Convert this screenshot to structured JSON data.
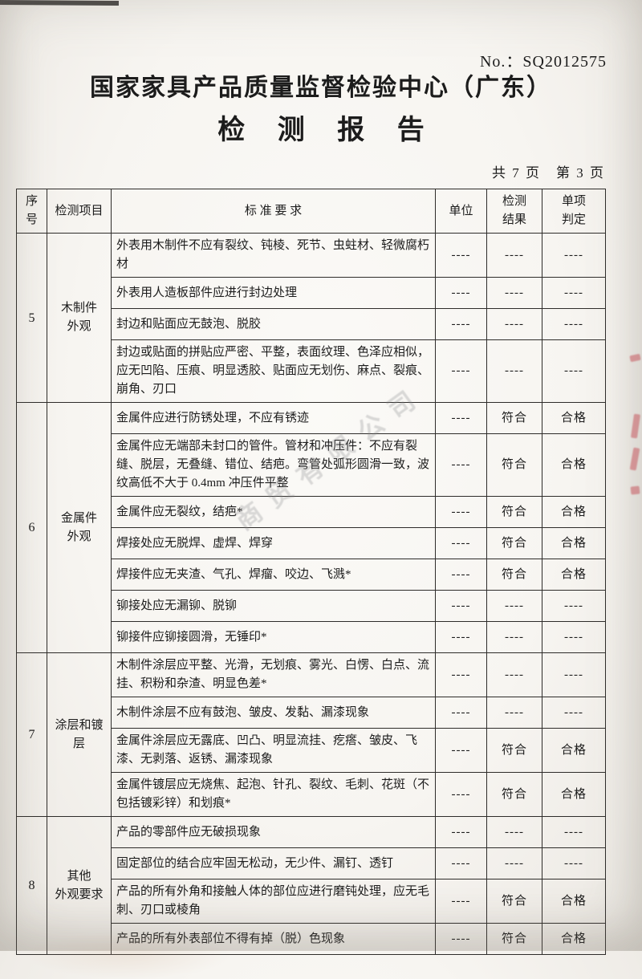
{
  "page": {
    "doc_no": "No.：SQ2012575",
    "org_title": "国家家具产品质量监督检验中心（广东）",
    "report_title": "检 测 报 告",
    "page_info": "共 7 页　第 3 页",
    "watermark": "商贸有限公司",
    "artifact_red": "#d24652",
    "paper_color": "#f7f5f1"
  },
  "table": {
    "headers": {
      "seq": "序\n号",
      "item": "检测项目",
      "requirement": "标 准 要 求",
      "unit": "单位",
      "result": "检测\n结果",
      "verdict": "单项\n判定"
    },
    "sections": [
      {
        "seq": "5",
        "item": "木制件\n外观",
        "rows": [
          {
            "req": "外表用木制件不应有裂纹、钝棱、死节、虫蛀材、轻微腐朽材",
            "unit": "----",
            "result": "----",
            "verdict": "----"
          },
          {
            "req": "外表用人造板部件应进行封边处理",
            "unit": "----",
            "result": "----",
            "verdict": "----"
          },
          {
            "req": "封边和贴面应无鼓泡、脱胶",
            "unit": "----",
            "result": "----",
            "verdict": "----"
          },
          {
            "req": "封边或贴面的拼贴应严密、平整，表面纹理、色泽应相似，应无凹陷、压痕、明显透胶、贴面应无划伤、麻点、裂痕、崩角、刃口",
            "unit": "----",
            "result": "----",
            "verdict": "----"
          }
        ]
      },
      {
        "seq": "6",
        "item": "金属件\n外观",
        "rows": [
          {
            "req": "金属件应进行防锈处理，不应有锈迹",
            "unit": "----",
            "result": "符合",
            "verdict": "合格"
          },
          {
            "req": "金属件应无端部未封口的管件。管材和冲压件：不应有裂缝、脱层，无叠缝、错位、结疤。弯管处弧形圆滑一致，波纹高低不大于 0.4mm 冲压件平整",
            "unit": "----",
            "result": "符合",
            "verdict": "合格"
          },
          {
            "req": "金属件应无裂纹，结疤*",
            "unit": "----",
            "result": "符合",
            "verdict": "合格"
          },
          {
            "req": "焊接处应无脱焊、虚焊、焊穿",
            "unit": "----",
            "result": "符合",
            "verdict": "合格"
          },
          {
            "req": "焊接件应无夹渣、气孔、焊瘤、咬边、飞溅*",
            "unit": "----",
            "result": "符合",
            "verdict": "合格"
          },
          {
            "req": "铆接处应无漏铆、脱铆",
            "unit": "----",
            "result": "----",
            "verdict": "----"
          },
          {
            "req": "铆接件应铆接圆滑，无锤印*",
            "unit": "----",
            "result": "----",
            "verdict": "----"
          }
        ]
      },
      {
        "seq": "7",
        "item": "涂层和镀\n层",
        "rows": [
          {
            "req": "木制件涂层应平整、光滑，无划痕、雾光、白愣、白点、流挂、积粉和杂渣、明显色差*",
            "unit": "----",
            "result": "----",
            "verdict": "----"
          },
          {
            "req": "木制件涂层不应有鼓泡、皱皮、发黏、漏漆现象",
            "unit": "----",
            "result": "----",
            "verdict": "----"
          },
          {
            "req": "金属件涂层应无露底、凹凸、明显流挂、疙瘩、皱皮、飞漆、无剥落、返锈、漏漆现象",
            "unit": "----",
            "result": "符合",
            "verdict": "合格"
          },
          {
            "req": "金属件镀层应无烧焦、起泡、针孔、裂纹、毛刺、花斑（不包括镀彩锌）和划痕*",
            "unit": "----",
            "result": "符合",
            "verdict": "合格"
          }
        ]
      },
      {
        "seq": "8",
        "item": "其他\n外观要求",
        "rows": [
          {
            "req": "产品的零部件应无破损现象",
            "unit": "----",
            "result": "----",
            "verdict": "----"
          },
          {
            "req": "固定部位的结合应牢固无松动，无少件、漏钉、透钉",
            "unit": "----",
            "result": "----",
            "verdict": "----"
          },
          {
            "req": "产品的所有外角和接触人体的部位应进行磨钝处理，应无毛刺、刃口或棱角",
            "unit": "----",
            "result": "符合",
            "verdict": "合格"
          },
          {
            "req": "产品的所有外表部位不得有掉（脱）色现象",
            "unit": "----",
            "result": "符合",
            "verdict": "合格"
          }
        ]
      }
    ]
  }
}
